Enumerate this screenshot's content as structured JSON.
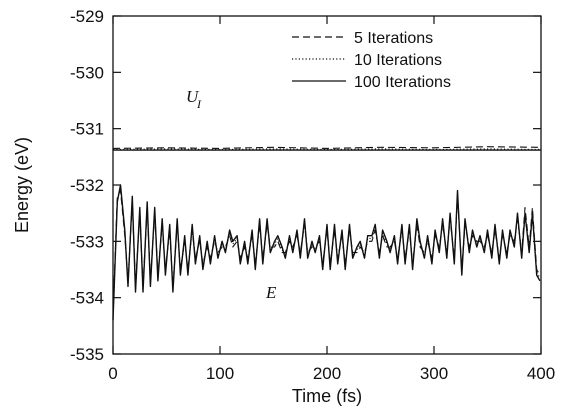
{
  "chart_data": {
    "type": "line",
    "title": "",
    "xlabel": "Time (fs)",
    "ylabel": "Energy (eV)",
    "xlim": [
      0,
      400
    ],
    "ylim": [
      -535,
      -529
    ],
    "xticks": [
      0,
      100,
      200,
      300,
      400
    ],
    "yticks": [
      -529,
      -530,
      -531,
      -532,
      -533,
      -534,
      -535
    ],
    "grid": false,
    "legend_position": "top-right",
    "legend": [
      {
        "label": "5 Iterations",
        "style": "dashed"
      },
      {
        "label": "10 Iterations",
        "style": "dotted"
      },
      {
        "label": "100 Iterations",
        "style": "solid"
      }
    ],
    "annotations": {
      "U_main": "U",
      "U_sub": "I",
      "E": "E"
    },
    "x": [
      0,
      4,
      7,
      11,
      14,
      18,
      21,
      25,
      28,
      32,
      35,
      39,
      42,
      46,
      49,
      53,
      56,
      60,
      63,
      67,
      70,
      74,
      77,
      81,
      84,
      88,
      91,
      95,
      98,
      102,
      105,
      109,
      112,
      116,
      119,
      123,
      126,
      130,
      133,
      137,
      140,
      144,
      147,
      151,
      154,
      158,
      161,
      165,
      168,
      172,
      175,
      179,
      182,
      186,
      189,
      193,
      196,
      200,
      203,
      207,
      210,
      214,
      217,
      221,
      224,
      228,
      231,
      235,
      238,
      242,
      245,
      249,
      252,
      256,
      259,
      263,
      266,
      270,
      273,
      277,
      280,
      284,
      287,
      291,
      294,
      298,
      301,
      305,
      308,
      312,
      315,
      319,
      322,
      326,
      329,
      333,
      336,
      340,
      343,
      347,
      350,
      354,
      357,
      361,
      364,
      368,
      371,
      375,
      378,
      382,
      385,
      389,
      392,
      396,
      399
    ],
    "series": [
      {
        "name": "5 Iterations",
        "group": "U_I",
        "style": "dashed",
        "x": [
          0,
          50,
          100,
          150,
          200,
          250,
          300,
          350,
          400
        ],
        "values": [
          -531.35,
          -531.34,
          -531.35,
          -531.33,
          -531.35,
          -531.33,
          -531.34,
          -531.32,
          -531.33
        ]
      },
      {
        "name": "10 Iterations",
        "group": "U_I",
        "style": "dotted",
        "x": [
          0,
          50,
          100,
          150,
          200,
          250,
          300,
          350,
          400
        ],
        "values": [
          -531.37,
          -531.36,
          -531.37,
          -531.36,
          -531.37,
          -531.36,
          -531.37,
          -531.36,
          -531.37
        ]
      },
      {
        "name": "100 Iterations",
        "group": "U_I",
        "style": "solid",
        "x": [
          0,
          50,
          100,
          150,
          200,
          250,
          300,
          350,
          400
        ],
        "values": [
          -531.38,
          -531.38,
          -531.38,
          -531.38,
          -531.38,
          -531.38,
          -531.38,
          -531.38,
          -531.38
        ]
      },
      {
        "name": "100 Iterations",
        "group": "E",
        "style": "solid",
        "values": [
          -534.4,
          -532.3,
          -532.0,
          -532.8,
          -533.8,
          -532.2,
          -533.9,
          -532.4,
          -533.9,
          -532.3,
          -533.8,
          -532.4,
          -533.7,
          -532.6,
          -533.6,
          -532.7,
          -533.9,
          -532.6,
          -533.6,
          -532.9,
          -533.6,
          -532.7,
          -533.4,
          -532.9,
          -533.5,
          -533.0,
          -533.4,
          -532.9,
          -533.3,
          -533.0,
          -533.2,
          -532.8,
          -533.0,
          -532.9,
          -533.4,
          -533.0,
          -533.4,
          -532.8,
          -533.5,
          -532.6,
          -533.4,
          -532.6,
          -533.2,
          -533.0,
          -532.9,
          -533.1,
          -533.3,
          -532.9,
          -533.2,
          -532.8,
          -533.3,
          -532.6,
          -533.3,
          -533.0,
          -533.2,
          -532.9,
          -533.5,
          -532.7,
          -533.5,
          -532.7,
          -533.4,
          -532.8,
          -533.5,
          -532.7,
          -533.3,
          -533.1,
          -533.0,
          -533.3,
          -532.9,
          -532.9,
          -532.7,
          -533.3,
          -532.8,
          -533.0,
          -533.2,
          -532.9,
          -533.4,
          -532.7,
          -533.4,
          -532.7,
          -533.5,
          -532.6,
          -533.0,
          -533.3,
          -532.9,
          -533.4,
          -532.8,
          -533.2,
          -532.6,
          -533.3,
          -532.5,
          -533.4,
          -532.1,
          -533.6,
          -532.6,
          -533.2,
          -532.8,
          -533.1,
          -532.9,
          -533.2,
          -532.8,
          -533.3,
          -532.7,
          -533.4,
          -532.8,
          -533.3,
          -532.8,
          -533.1,
          -532.5,
          -533.3,
          -532.5,
          -533.2,
          -532.5,
          -533.6,
          -533.7
        ]
      },
      {
        "name": "10 Iterations",
        "group": "E",
        "style": "dotted",
        "values": [
          -534.35,
          -532.25,
          -532.05,
          -532.85,
          -533.75,
          -532.25,
          -533.85,
          -532.45,
          -533.85,
          -532.35,
          -533.75,
          -532.45,
          -533.65,
          -532.65,
          -533.55,
          -532.75,
          -533.85,
          -532.65,
          -533.55,
          -532.95,
          -533.55,
          -532.75,
          -533.35,
          -532.95,
          -533.45,
          -533.05,
          -533.35,
          -532.95,
          -533.25,
          -533.05,
          -533.15,
          -532.85,
          -533.05,
          -532.95,
          -533.35,
          -533.05,
          -533.35,
          -532.85,
          -533.45,
          -532.65,
          -533.35,
          -532.65,
          -533.15,
          -533.05,
          -532.95,
          -533.15,
          -533.25,
          -532.95,
          -533.15,
          -532.85,
          -533.25,
          -532.65,
          -533.25,
          -533.05,
          -533.15,
          -532.95,
          -533.45,
          -532.75,
          -533.45,
          -532.75,
          -533.35,
          -532.85,
          -533.45,
          -532.75,
          -533.25,
          -533.15,
          -533.05,
          -533.25,
          -532.95,
          -532.95,
          -532.75,
          -533.25,
          -532.85,
          -533.05,
          -533.15,
          -532.95,
          -533.35,
          -532.75,
          -533.35,
          -532.75,
          -533.45,
          -532.65,
          -533.05,
          -533.25,
          -532.95,
          -533.35,
          -532.85,
          -533.15,
          -532.65,
          -533.25,
          -532.55,
          -533.35,
          -532.15,
          -533.55,
          -532.65,
          -533.15,
          -532.85,
          -533.05,
          -532.95,
          -533.15,
          -532.85,
          -533.25,
          -532.75,
          -533.35,
          -532.85,
          -533.25,
          -532.85,
          -533.05,
          -532.55,
          -533.25,
          -532.55,
          -533.15,
          -532.55,
          -533.55,
          -533.65
        ]
      },
      {
        "name": "5 Iterations",
        "group": "E",
        "style": "dashed",
        "values": [
          -534.3,
          -532.2,
          -532.1,
          -532.9,
          -533.7,
          -532.3,
          -533.8,
          -532.5,
          -533.8,
          -532.4,
          -533.7,
          -532.5,
          -533.6,
          -532.7,
          -533.5,
          -532.8,
          -533.8,
          -532.7,
          -533.5,
          -533.0,
          -533.5,
          -532.8,
          -533.3,
          -533.0,
          -533.4,
          -533.1,
          -533.3,
          -533.0,
          -533.2,
          -533.1,
          -533.1,
          -532.9,
          -533.1,
          -533.0,
          -533.3,
          -533.1,
          -533.3,
          -532.9,
          -533.4,
          -532.7,
          -533.3,
          -532.7,
          -533.1,
          -533.1,
          -533.0,
          -533.2,
          -533.2,
          -533.0,
          -533.1,
          -532.9,
          -533.2,
          -532.7,
          -533.2,
          -533.1,
          -533.1,
          -533.0,
          -533.4,
          -532.8,
          -533.4,
          -532.8,
          -533.3,
          -532.9,
          -533.4,
          -532.8,
          -533.2,
          -533.2,
          -533.1,
          -533.2,
          -533.0,
          -533.0,
          -532.8,
          -533.2,
          -532.9,
          -533.1,
          -533.1,
          -533.0,
          -533.3,
          -532.8,
          -533.3,
          -532.8,
          -533.4,
          -532.7,
          -533.1,
          -533.2,
          -533.0,
          -533.3,
          -532.9,
          -533.1,
          -532.7,
          -533.2,
          -532.6,
          -533.3,
          -532.2,
          -533.5,
          -532.7,
          -533.1,
          -532.9,
          -533.0,
          -533.0,
          -533.1,
          -532.9,
          -533.2,
          -532.8,
          -533.3,
          -532.9,
          -533.2,
          -532.9,
          -533.0,
          -532.6,
          -533.2,
          -532.4,
          -533.1,
          -532.4,
          -533.5,
          -533.6
        ]
      }
    ]
  }
}
